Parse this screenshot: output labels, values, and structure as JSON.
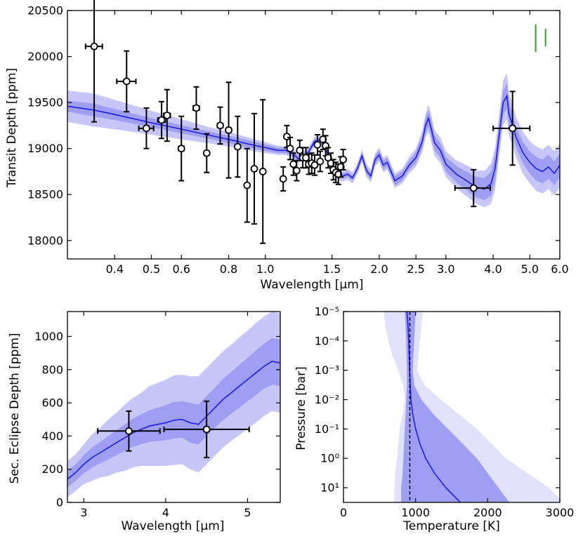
{
  "chart_data": [
    {
      "type": "line",
      "name": "transmission-spectrum",
      "xlabel": "Wavelength [μm]",
      "ylabel": "Transit Depth [ppm]",
      "xscale": "log",
      "xlim": [
        0.3,
        6.0
      ],
      "ylim": [
        17800,
        20500
      ],
      "xticks": [
        0.4,
        0.5,
        0.6,
        0.8,
        1.0,
        1.5,
        2.0,
        2.5,
        3.0,
        4.0,
        5.0,
        6.0
      ],
      "xtick_labels": [
        "0.4",
        "0.5",
        "0.6",
        "0.8",
        "1.0",
        "1.5",
        "2.0",
        "2.5",
        "3.0",
        "4.0",
        "5.0",
        "6.0"
      ],
      "yticks": [
        18000,
        18500,
        19000,
        19500,
        20000,
        20500
      ],
      "ytick_labels": [
        "18000",
        "18500",
        "19000",
        "19500",
        "20000",
        "20500"
      ],
      "model": {
        "x": [
          0.3,
          0.35,
          0.4,
          0.5,
          0.6,
          0.7,
          0.8,
          0.9,
          1.0,
          1.08,
          1.13,
          1.18,
          1.22,
          1.27,
          1.3,
          1.35,
          1.4,
          1.45,
          1.5,
          1.55,
          1.6,
          1.65,
          1.7,
          1.75,
          1.8,
          1.85,
          1.9,
          1.95,
          2.0,
          2.05,
          2.1,
          2.2,
          2.3,
          2.4,
          2.5,
          2.6,
          2.65,
          2.7,
          2.75,
          2.8,
          2.9,
          3.0,
          3.2,
          3.4,
          3.6,
          3.8,
          3.95,
          4.05,
          4.15,
          4.25,
          4.35,
          4.4,
          4.5,
          4.6,
          4.8,
          5.0,
          5.2,
          5.4,
          5.6,
          5.8,
          6.0
        ],
        "y": [
          19460,
          19420,
          19370,
          19280,
          19210,
          19150,
          19100,
          19050,
          19010,
          18980,
          18980,
          18950,
          18890,
          18930,
          18960,
          19080,
          19090,
          18980,
          18800,
          18720,
          18700,
          18720,
          18680,
          18780,
          18920,
          18760,
          18700,
          18880,
          18930,
          18820,
          18850,
          18650,
          18700,
          18820,
          18900,
          19080,
          19250,
          19330,
          19200,
          19060,
          18980,
          18830,
          18720,
          18650,
          18580,
          18560,
          18620,
          18790,
          19150,
          19500,
          19570,
          19380,
          19250,
          19120,
          18950,
          18850,
          18780,
          18750,
          18800,
          18730,
          18820
        ],
        "sigma1_halfwidth": [
          60,
          70,
          60,
          50,
          45,
          40,
          40,
          40,
          35,
          30,
          30,
          30,
          30,
          30,
          30,
          30,
          30,
          30,
          30,
          30,
          30,
          30,
          30,
          30,
          40,
          40,
          40,
          40,
          50,
          50,
          50,
          50,
          50,
          50,
          60,
          70,
          80,
          90,
          90,
          80,
          80,
          80,
          90,
          100,
          110,
          120,
          130,
          140,
          130,
          130,
          140,
          130,
          120,
          110,
          120,
          120,
          130,
          130,
          130,
          130,
          130
        ],
        "sigma2_halfwidth": [
          170,
          180,
          160,
          130,
          110,
          90,
          80,
          70,
          60,
          50,
          50,
          50,
          50,
          50,
          50,
          50,
          50,
          50,
          50,
          50,
          60,
          60,
          60,
          60,
          70,
          70,
          70,
          70,
          80,
          80,
          80,
          80,
          80,
          90,
          100,
          120,
          130,
          150,
          150,
          140,
          140,
          140,
          150,
          170,
          180,
          200,
          220,
          230,
          230,
          240,
          250,
          230,
          220,
          220,
          230,
          230,
          240,
          240,
          240,
          240,
          240
        ]
      },
      "observations": [
        {
          "x": 0.353,
          "xerr": 0.018,
          "y": 20110,
          "yerr": 820
        },
        {
          "x": 0.43,
          "xerr": 0.025,
          "y": 19730,
          "yerr": 330
        },
        {
          "x": 0.485,
          "xerr": 0.022,
          "y": 19220,
          "yerr": 220
        },
        {
          "x": 0.532,
          "xerr": 0.012,
          "y": 19310,
          "yerr": 200
        },
        {
          "x": 0.55,
          "xerr": 0.011,
          "y": 19360,
          "yerr": 280
        },
        {
          "x": 0.6,
          "xerr": 0.01,
          "y": 19000,
          "yerr": 350
        },
        {
          "x": 0.657,
          "xerr": 0.012,
          "y": 19440,
          "yerr": 230
        },
        {
          "x": 0.7,
          "xerr": 0.01,
          "y": 18950,
          "yerr": 210
        },
        {
          "x": 0.76,
          "xerr": 0.012,
          "y": 19250,
          "yerr": 200
        },
        {
          "x": 0.8,
          "xerr": 0.012,
          "y": 19200,
          "yerr": 520
        },
        {
          "x": 0.845,
          "xerr": 0.012,
          "y": 19020,
          "yerr": 330
        },
        {
          "x": 0.895,
          "xerr": 0.01,
          "y": 18600,
          "yerr": 400
        },
        {
          "x": 0.935,
          "xerr": 0.01,
          "y": 18780,
          "yerr": 600
        },
        {
          "x": 0.985,
          "xerr": 0.012,
          "y": 18750,
          "yerr": 780
        },
        {
          "x": 1.115,
          "xerr": 0.008,
          "y": 18670,
          "yerr": 130
        },
        {
          "x": 1.14,
          "xerr": 0.008,
          "y": 19130,
          "yerr": 120
        },
        {
          "x": 1.163,
          "xerr": 0.008,
          "y": 19000,
          "yerr": 120
        },
        {
          "x": 1.186,
          "xerr": 0.008,
          "y": 18830,
          "yerr": 120
        },
        {
          "x": 1.21,
          "xerr": 0.008,
          "y": 18760,
          "yerr": 110
        },
        {
          "x": 1.233,
          "xerr": 0.008,
          "y": 18980,
          "yerr": 110
        },
        {
          "x": 1.256,
          "xerr": 0.008,
          "y": 18900,
          "yerr": 110
        },
        {
          "x": 1.28,
          "xerr": 0.008,
          "y": 18900,
          "yerr": 110
        },
        {
          "x": 1.303,
          "xerr": 0.008,
          "y": 18830,
          "yerr": 110
        },
        {
          "x": 1.326,
          "xerr": 0.008,
          "y": 18840,
          "yerr": 110
        },
        {
          "x": 1.35,
          "xerr": 0.008,
          "y": 18820,
          "yerr": 110
        },
        {
          "x": 1.373,
          "xerr": 0.008,
          "y": 19040,
          "yerr": 110
        },
        {
          "x": 1.396,
          "xerr": 0.008,
          "y": 18860,
          "yerr": 110
        },
        {
          "x": 1.42,
          "xerr": 0.008,
          "y": 19100,
          "yerr": 110
        },
        {
          "x": 1.443,
          "xerr": 0.008,
          "y": 19030,
          "yerr": 110
        },
        {
          "x": 1.466,
          "xerr": 0.008,
          "y": 18900,
          "yerr": 110
        },
        {
          "x": 1.49,
          "xerr": 0.008,
          "y": 18840,
          "yerr": 110
        },
        {
          "x": 1.513,
          "xerr": 0.008,
          "y": 18770,
          "yerr": 110
        },
        {
          "x": 1.536,
          "xerr": 0.008,
          "y": 18740,
          "yerr": 110
        },
        {
          "x": 1.56,
          "xerr": 0.008,
          "y": 18720,
          "yerr": 110
        },
        {
          "x": 1.583,
          "xerr": 0.008,
          "y": 18800,
          "yerr": 110
        },
        {
          "x": 1.606,
          "xerr": 0.008,
          "y": 18880,
          "yerr": 110
        },
        {
          "x": 3.55,
          "xerr": 0.38,
          "y": 18570,
          "yerr": 200
        },
        {
          "x": 4.5,
          "xerr": 0.5,
          "y": 19220,
          "yerr": 400
        }
      ],
      "green_marks": [
        {
          "x": 5.18,
          "y_low": 20050,
          "y_high": 20350
        },
        {
          "x": 5.5,
          "y_low": 20110,
          "y_high": 20300
        }
      ]
    },
    {
      "type": "line",
      "name": "eclipse-spectrum",
      "xlabel": "Wavelength [μm]",
      "ylabel": "Sec. Eclipse Depth [ppm]",
      "xlim": [
        2.8,
        5.4
      ],
      "ylim": [
        0,
        1150
      ],
      "xticks": [
        3,
        4,
        5
      ],
      "xtick_labels": [
        "3",
        "4",
        "5"
      ],
      "yticks": [
        0,
        200,
        400,
        600,
        800,
        1000
      ],
      "ytick_labels": [
        "0",
        "200",
        "400",
        "600",
        "800",
        "1000"
      ],
      "model": {
        "x": [
          2.8,
          2.9,
          3.0,
          3.1,
          3.2,
          3.3,
          3.4,
          3.5,
          3.6,
          3.7,
          3.8,
          3.9,
          4.0,
          4.1,
          4.2,
          4.3,
          4.4,
          4.5,
          4.6,
          4.7,
          4.8,
          4.9,
          5.0,
          5.1,
          5.2,
          5.3,
          5.4
        ],
        "y": [
          140,
          180,
          230,
          270,
          300,
          330,
          360,
          390,
          420,
          440,
          460,
          470,
          480,
          495,
          500,
          480,
          470,
          520,
          570,
          620,
          660,
          700,
          740,
          780,
          820,
          850,
          840
        ],
        "sigma1_halfwidth": [
          50,
          50,
          55,
          60,
          65,
          70,
          75,
          80,
          85,
          90,
          95,
          100,
          105,
          110,
          110,
          120,
          120,
          120,
          120,
          125,
          125,
          130,
          130,
          135,
          135,
          140,
          140
        ],
        "sigma2_halfwidth": [
          110,
          110,
          120,
          140,
          150,
          170,
          180,
          200,
          210,
          220,
          240,
          250,
          260,
          270,
          270,
          280,
          290,
          290,
          290,
          290,
          290,
          295,
          295,
          300,
          300,
          300,
          300
        ]
      },
      "observations": [
        {
          "x": 3.55,
          "xerr": 0.38,
          "y": 430,
          "yerr": 120
        },
        {
          "x": 4.5,
          "xerr": 0.52,
          "y": 440,
          "yerr": 170
        }
      ]
    },
    {
      "type": "line",
      "name": "temperature-pressure-profile",
      "xlabel": "Temperature [K]",
      "ylabel": "Pressure [bar]",
      "xlim": [
        0,
        3000
      ],
      "ylim_log10": [
        -5,
        1.5
      ],
      "xticks": [
        0,
        1000,
        2000,
        3000
      ],
      "xtick_labels": [
        "0",
        "1000",
        "2000",
        "3000"
      ],
      "yticks_log10": [
        -5,
        -4,
        -3,
        -2,
        -1,
        0,
        1
      ],
      "ytick_labels": [
        "10⁻⁵",
        "10⁻⁴",
        "10⁻³",
        "10⁻²",
        "10⁻¹",
        "10⁰",
        "10¹"
      ],
      "reference_temperature_K": 920,
      "profile": {
        "logP": [
          -5,
          -4.5,
          -4,
          -3.5,
          -3,
          -2.5,
          -2,
          -1.5,
          -1,
          -0.5,
          0,
          0.5,
          1,
          1.5
        ],
        "T": [
          880,
          895,
          905,
          912,
          918,
          925,
          935,
          960,
          1000,
          1060,
          1140,
          1260,
          1420,
          1620
        ],
        "sigma1_lo": [
          850,
          860,
          870,
          875,
          880,
          880,
          870,
          860,
          850,
          840,
          830,
          820,
          800,
          800
        ],
        "sigma1_hi": [
          1000,
          990,
          980,
          970,
          960,
          980,
          1080,
          1250,
          1450,
          1650,
          1850,
          2000,
          2150,
          2300
        ],
        "sigma2_lo": [
          560,
          580,
          620,
          680,
          760,
          830,
          850,
          820,
          780,
          760,
          740,
          720,
          710,
          700
        ],
        "sigma2_hi": [
          1100,
          1080,
          1060,
          1040,
          1020,
          1120,
          1350,
          1600,
          1850,
          2050,
          2250,
          2550,
          2850,
          3050
        ]
      }
    }
  ],
  "colors": {
    "model_line": "#1c1cf0",
    "sigma1": "#9e9ef5",
    "sigma2": "#c6c6f8",
    "sigma2_light": "#e1e1fb",
    "marker_edge": "#000000",
    "marker_face": "#ffffff",
    "green": "#2e9e2e",
    "dashed": "#000000"
  }
}
